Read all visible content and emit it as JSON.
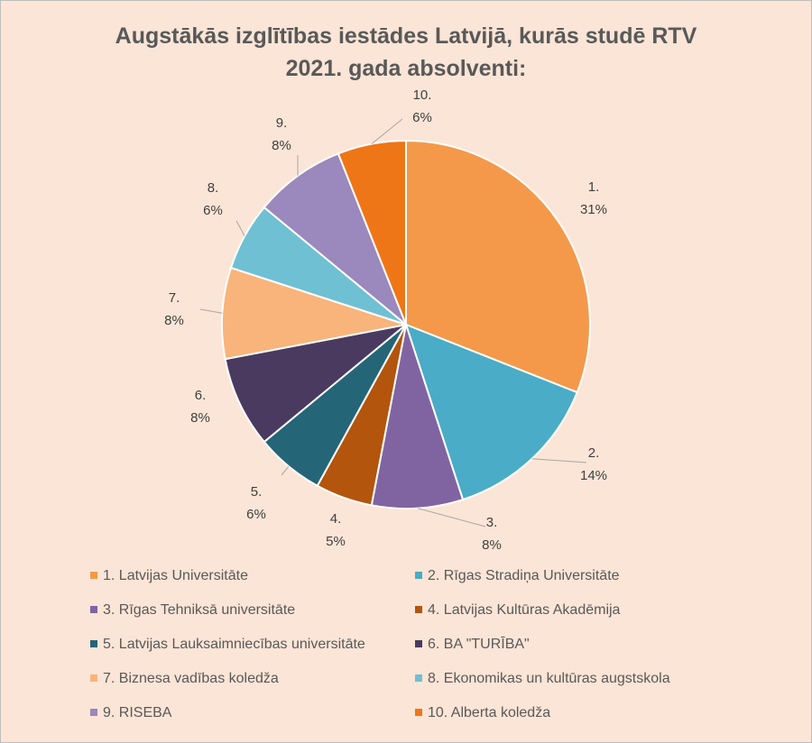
{
  "chart_data": {
    "type": "pie",
    "title_lines": [
      "Augstākās izglītības iestādes Latvijā, kurās studē RTV",
      "2021. gada absolventi:"
    ],
    "legend_position": "bottom",
    "slices": [
      {
        "name": "1. Latvijas Universitāte",
        "num": "1.",
        "value": 31,
        "label": "31%",
        "color": "#f4994a"
      },
      {
        "name": "2. Rīgas Stradiņa Universitāte",
        "num": "2.",
        "value": 14,
        "label": "14%",
        "color": "#4aacc6"
      },
      {
        "name": "3. Rīgas Tehniksā universitāte",
        "num": "3.",
        "value": 8,
        "label": "8%",
        "color": "#8064a2"
      },
      {
        "name": "4. Latvijas Kultūras Akadēmija",
        "num": "4.",
        "value": 5,
        "label": "5%",
        "color": "#b3550c"
      },
      {
        "name": "5. Latvijas Lauksaimniecības universitāte",
        "num": "5.",
        "value": 6,
        "label": "6%",
        "color": "#246577"
      },
      {
        "name": "6. BA \"TURĪBA\"",
        "num": "6.",
        "value": 8,
        "label": "8%",
        "color": "#4a3a60"
      },
      {
        "name": "7. Biznesa vadības koledža",
        "num": "7.",
        "value": 8,
        "label": "8%",
        "color": "#f8b47a"
      },
      {
        "name": "8. Ekonomikas un kultūras augstskola",
        "num": "8.",
        "value": 6,
        "label": "6%",
        "color": "#6fc0d3"
      },
      {
        "name": "9. RISEBA",
        "num": "9.",
        "value": 8,
        "label": "8%",
        "color": "#9b88bc"
      },
      {
        "name": "10. Alberta koledža",
        "num": "10.",
        "value": 6,
        "label": "6%",
        "color": "#ef7616"
      }
    ]
  }
}
